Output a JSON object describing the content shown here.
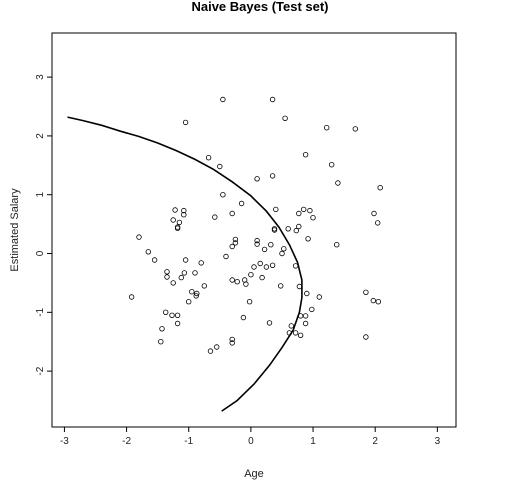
{
  "chart_data": {
    "type": "scatter",
    "title": "Naive Bayes (Test set)",
    "xlabel": "Age",
    "ylabel": "Estimated Salary",
    "xlim": [
      -3.2,
      3.3
    ],
    "ylim": [
      -2.95,
      3.75
    ],
    "x_ticks": [
      -3,
      -2,
      -1,
      0,
      1,
      2,
      3
    ],
    "y_ticks": [
      -2,
      -1,
      0,
      1,
      2,
      3
    ],
    "y_tick_rotation": "vertical",
    "grid": false,
    "legend": "none",
    "series": [
      {
        "marker": "open-circle",
        "points": [
          [
            -0.45,
            2.62
          ],
          [
            0.35,
            2.62
          ],
          [
            0.55,
            2.3
          ],
          [
            1.22,
            2.14
          ],
          [
            1.68,
            2.12
          ],
          [
            -1.05,
            2.23
          ],
          [
            -0.68,
            1.63
          ],
          [
            -0.5,
            1.48
          ],
          [
            0.88,
            1.68
          ],
          [
            1.3,
            1.51
          ],
          [
            0.35,
            1.32
          ],
          [
            0.1,
            1.27
          ],
          [
            1.4,
            1.2
          ],
          [
            2.08,
            1.12
          ],
          [
            -0.45,
            1.0
          ],
          [
            0.4,
            0.75
          ],
          [
            -0.15,
            0.85
          ],
          [
            0.85,
            0.75
          ],
          [
            0.95,
            0.73
          ],
          [
            1.98,
            0.68
          ],
          [
            0.77,
            0.68
          ],
          [
            -1.22,
            0.74
          ],
          [
            -1.08,
            0.73
          ],
          [
            -1.08,
            0.66
          ],
          [
            -0.58,
            0.62
          ],
          [
            -0.3,
            0.68
          ],
          [
            1.0,
            0.61
          ],
          [
            -1.25,
            0.57
          ],
          [
            -1.15,
            0.53
          ],
          [
            -1.18,
            0.45
          ],
          [
            -1.18,
            0.43
          ],
          [
            0.38,
            0.42
          ],
          [
            0.38,
            0.4
          ],
          [
            0.6,
            0.42
          ],
          [
            0.77,
            0.46
          ],
          [
            0.73,
            0.39
          ],
          [
            2.04,
            0.52
          ],
          [
            0.92,
            0.25
          ],
          [
            -0.25,
            0.24
          ],
          [
            -0.25,
            0.18
          ],
          [
            -0.3,
            0.12
          ],
          [
            0.1,
            0.22
          ],
          [
            0.1,
            0.16
          ],
          [
            0.32,
            0.15
          ],
          [
            0.22,
            0.07
          ],
          [
            1.38,
            0.15
          ],
          [
            0.53,
            0.08
          ],
          [
            0.5,
            0.0
          ],
          [
            -1.8,
            0.28
          ],
          [
            -1.65,
            0.03
          ],
          [
            -1.55,
            -0.11
          ],
          [
            -1.05,
            -0.11
          ],
          [
            -0.8,
            -0.16
          ],
          [
            0.15,
            -0.17
          ],
          [
            0.05,
            -0.23
          ],
          [
            0.25,
            -0.23
          ],
          [
            0.35,
            -0.2
          ],
          [
            -0.4,
            -0.05
          ],
          [
            -1.35,
            -0.31
          ],
          [
            -1.07,
            -0.33
          ],
          [
            -0.9,
            -0.33
          ],
          [
            -1.35,
            -0.4
          ],
          [
            -1.12,
            -0.41
          ],
          [
            -1.25,
            -0.5
          ],
          [
            -0.3,
            -0.45
          ],
          [
            -0.22,
            -0.48
          ],
          [
            -0.1,
            -0.45
          ],
          [
            0.0,
            -0.36
          ],
          [
            0.18,
            -0.41
          ],
          [
            -0.75,
            -0.55
          ],
          [
            -0.95,
            -0.65
          ],
          [
            -0.88,
            -0.72
          ],
          [
            -1.0,
            -0.82
          ],
          [
            -0.87,
            -0.68
          ],
          [
            -0.02,
            -0.82
          ],
          [
            0.72,
            -0.21
          ],
          [
            0.78,
            -0.56
          ],
          [
            -0.08,
            -0.52
          ],
          [
            0.48,
            -0.55
          ],
          [
            1.85,
            -0.66
          ],
          [
            1.97,
            -0.8
          ],
          [
            2.05,
            -0.82
          ],
          [
            0.9,
            -0.68
          ],
          [
            1.1,
            -0.74
          ],
          [
            0.98,
            -0.95
          ],
          [
            0.88,
            -1.06
          ],
          [
            0.8,
            -1.06
          ],
          [
            0.88,
            -1.19
          ],
          [
            0.3,
            -1.18
          ],
          [
            -0.12,
            -1.09
          ],
          [
            -1.37,
            -1.0
          ],
          [
            -1.27,
            -1.05
          ],
          [
            -1.18,
            -1.05
          ],
          [
            -1.18,
            -1.19
          ],
          [
            -1.43,
            -1.28
          ],
          [
            -1.45,
            -1.5
          ],
          [
            -0.65,
            -1.66
          ],
          [
            -0.55,
            -1.59
          ],
          [
            -0.3,
            -1.46
          ],
          [
            -0.3,
            -1.52
          ],
          [
            0.65,
            -1.23
          ],
          [
            0.72,
            -1.35
          ],
          [
            0.62,
            -1.35
          ],
          [
            0.8,
            -1.39
          ],
          [
            1.85,
            -1.42
          ],
          [
            -1.92,
            -0.74
          ]
        ]
      }
    ],
    "boundary": {
      "style": "solid-line",
      "points": [
        [
          -2.95,
          2.32
        ],
        [
          -2.7,
          2.26
        ],
        [
          -2.4,
          2.18
        ],
        [
          -2.1,
          2.08
        ],
        [
          -1.8,
          1.99
        ],
        [
          -1.5,
          1.88
        ],
        [
          -1.2,
          1.75
        ],
        [
          -0.9,
          1.6
        ],
        [
          -0.6,
          1.43
        ],
        [
          -0.3,
          1.22
        ],
        [
          0.0,
          0.98
        ],
        [
          0.25,
          0.72
        ],
        [
          0.45,
          0.45
        ],
        [
          0.62,
          0.15
        ],
        [
          0.75,
          -0.15
        ],
        [
          0.82,
          -0.45
        ],
        [
          0.82,
          -0.75
        ],
        [
          0.78,
          -1.0
        ],
        [
          0.68,
          -1.3
        ],
        [
          0.5,
          -1.6
        ],
        [
          0.3,
          -1.9
        ],
        [
          0.05,
          -2.22
        ],
        [
          -0.22,
          -2.5
        ],
        [
          -0.47,
          -2.68
        ]
      ]
    }
  }
}
